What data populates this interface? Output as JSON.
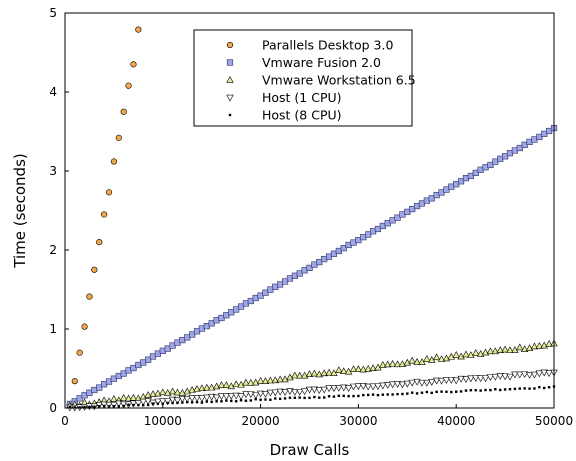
{
  "chart_data": {
    "type": "scatter",
    "xlabel": "Draw Calls",
    "ylabel": "Time (seconds)",
    "xlim": [
      0,
      50000
    ],
    "ylim": [
      0,
      5
    ],
    "xticks": [
      0,
      10000,
      20000,
      30000,
      40000,
      50000
    ],
    "yticks": [
      0,
      1,
      2,
      3,
      4,
      5
    ],
    "grid": false,
    "legend_position": "top-center",
    "series": [
      {
        "name": "Parallels Desktop 3.0",
        "marker": "circle",
        "color": "#f5a74a",
        "points": [
          [
            1000,
            0.34
          ],
          [
            1500,
            0.7
          ],
          [
            2000,
            1.03
          ],
          [
            2500,
            1.41
          ],
          [
            3000,
            1.75
          ],
          [
            3500,
            2.1
          ],
          [
            4000,
            2.45
          ],
          [
            4500,
            2.73
          ],
          [
            5000,
            3.12
          ],
          [
            5500,
            3.42
          ],
          [
            6000,
            3.75
          ],
          [
            6500,
            4.08
          ],
          [
            7000,
            4.35
          ],
          [
            7500,
            4.79
          ]
        ]
      },
      {
        "name": "Vmware Fusion 2.0",
        "marker": "square",
        "color": "#9fa6e6",
        "x_start": 500,
        "x_end": 50000,
        "x_step": 500,
        "slope_per_10000": 0.705,
        "intercept": 0.015,
        "noise": 0.005
      },
      {
        "name": "Vmware Workstation 6.5",
        "marker": "triangle-up",
        "color": "#e6ec9a",
        "x_start": 500,
        "x_end": 50000,
        "x_step": 500,
        "slope_per_10000": 0.158,
        "intercept": 0.02,
        "noise": 0.02
      },
      {
        "name": "Host (1 CPU)",
        "marker": "triangle-down",
        "color": "#ffffff",
        "x_start": 500,
        "x_end": 50000,
        "x_step": 500,
        "slope_per_10000": 0.09,
        "intercept": 0.0,
        "noise": 0.012
      },
      {
        "name": "Host (8 CPU)",
        "marker": "point",
        "color": "#000000",
        "x_start": 500,
        "x_end": 50000,
        "x_step": 500,
        "slope_per_10000": 0.053,
        "intercept": 0.0,
        "noise": 0.008
      }
    ]
  }
}
